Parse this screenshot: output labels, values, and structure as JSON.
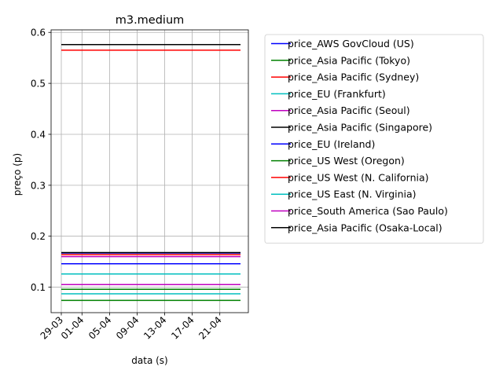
{
  "chart_data": {
    "type": "line",
    "title": "m3.medium",
    "xlabel": "data (s)",
    "ylabel": "preço (p)",
    "x": [
      "29-03",
      "24-04"
    ],
    "x_ticks": [
      "29-03",
      "01-04",
      "05-04",
      "09-04",
      "13-04",
      "17-04",
      "21-04"
    ],
    "y_ticks": [
      "0.1",
      "0.2",
      "0.3",
      "0.4",
      "0.5",
      "0.6"
    ],
    "ylim": [
      0.05,
      0.605
    ],
    "grid": true,
    "legend_position": "outside-right",
    "series": [
      {
        "name": "price_AWS GovCloud (US)",
        "color": "#0000ff",
        "values": [
          0.167,
          0.167
        ]
      },
      {
        "name": "price_Asia Pacific (Tokyo)",
        "color": "#008000",
        "values": [
          0.096,
          0.096
        ]
      },
      {
        "name": "price_Asia Pacific (Sydney)",
        "color": "#ff0000",
        "values": [
          0.565,
          0.565
        ]
      },
      {
        "name": "price_EU (Frankfurt)",
        "color": "#00bfbf",
        "values": [
          0.087,
          0.087
        ]
      },
      {
        "name": "price_Asia Pacific (Seoul)",
        "color": "#bf00bf",
        "values": [
          0.16,
          0.16
        ]
      },
      {
        "name": "price_Asia Pacific (Singapore)",
        "color": "#000000",
        "values": [
          0.576,
          0.576
        ]
      },
      {
        "name": "price_EU (Ireland)",
        "color": "#0000ff",
        "values": [
          0.146,
          0.146
        ]
      },
      {
        "name": "price_US West (Oregon)",
        "color": "#008000",
        "values": [
          0.074,
          0.074
        ]
      },
      {
        "name": "price_US West (N. California)",
        "color": "#ff0000",
        "values": [
          0.164,
          0.164
        ]
      },
      {
        "name": "price_US East (N. Virginia)",
        "color": "#00bfbf",
        "values": [
          0.126,
          0.126
        ]
      },
      {
        "name": "price_South America (Sao Paulo)",
        "color": "#bf00bf",
        "values": [
          0.105,
          0.105
        ]
      },
      {
        "name": "price_Asia Pacific (Osaka-Local)",
        "color": "#000000",
        "values": [
          0.168,
          0.168
        ]
      }
    ]
  }
}
